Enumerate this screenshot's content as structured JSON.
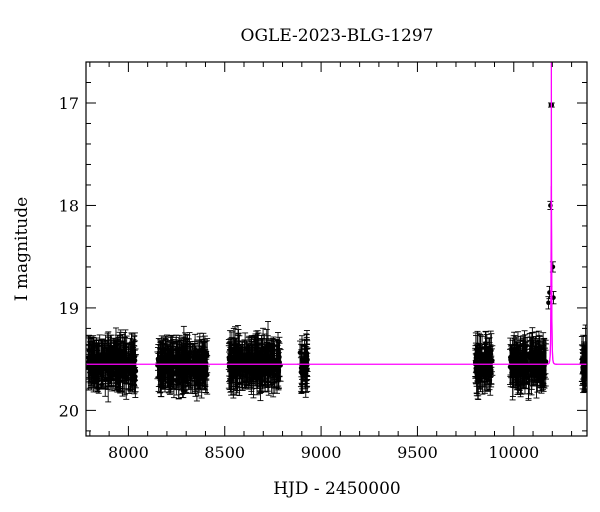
{
  "chart_data": {
    "type": "scatter",
    "title": "OGLE-2023-BLG-1297",
    "xlabel": "HJD - 2450000",
    "ylabel": "I magnitude",
    "xlim": [
      7780,
      10380
    ],
    "ylim": [
      20.25,
      16.6
    ],
    "y_inverted": true,
    "grid": false,
    "x_ticks": [
      8000,
      8500,
      9000,
      9500,
      10000
    ],
    "y_ticks": [
      17,
      18,
      19,
      20
    ],
    "x_minor_step": 100,
    "y_minor_step": 0.2,
    "series": [
      {
        "kind": "observations",
        "color": "#000000",
        "marker": "filled-circle",
        "baseline_mag": 19.55,
        "typical_error": 0.17,
        "season_ranges": [
          [
            7790,
            8040
          ],
          [
            8150,
            8410
          ],
          [
            8520,
            8790
          ],
          [
            8890,
            8930
          ],
          [
            9800,
            9890
          ],
          [
            9980,
            10170
          ],
          [
            10350,
            10380
          ]
        ],
        "peak_points": [
          {
            "x": 10180,
            "y": 18.95,
            "err": 0.06
          },
          {
            "x": 10185,
            "y": 18.85,
            "err": 0.06
          },
          {
            "x": 10190,
            "y": 18.0,
            "err": 0.04
          },
          {
            "x": 10193,
            "y": 17.02,
            "err": 0.02
          },
          {
            "x": 10197,
            "y": 17.02,
            "err": 0.02
          },
          {
            "x": 10203,
            "y": 18.6,
            "err": 0.05
          },
          {
            "x": 10206,
            "y": 18.9,
            "err": 0.06
          }
        ]
      },
      {
        "kind": "model",
        "color": "#ff00ff",
        "t0": 10195,
        "tE": 3.5,
        "u0": 0.02,
        "baseline_mag": 19.55
      }
    ]
  }
}
